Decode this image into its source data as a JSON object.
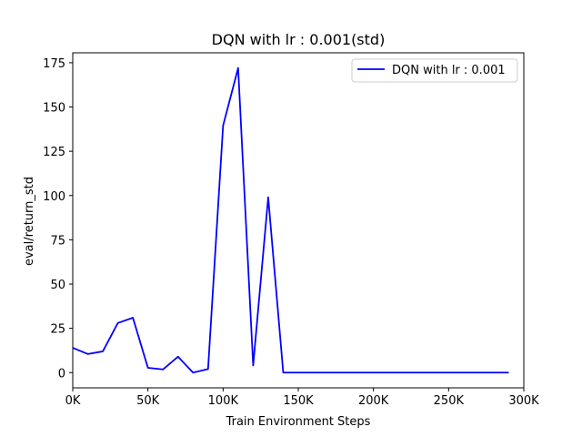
{
  "chart_data": {
    "type": "line",
    "title": "DQN with lr : 0.001(std)",
    "xlabel": "Train Environment Steps",
    "ylabel": "eval/return_std",
    "xlim": [
      0,
      300000
    ],
    "ylim": [
      -8.6,
      180.6
    ],
    "x_ticks": [
      0,
      50000,
      100000,
      150000,
      200000,
      250000,
      300000
    ],
    "x_tick_labels": [
      "0K",
      "50K",
      "100K",
      "150K",
      "200K",
      "250K",
      "300K"
    ],
    "y_ticks": [
      0,
      25,
      50,
      75,
      100,
      125,
      150,
      175
    ],
    "y_tick_labels": [
      "0",
      "25",
      "50",
      "75",
      "100",
      "125",
      "150",
      "175"
    ],
    "grid": false,
    "legend": {
      "placement": "top-right"
    },
    "series": [
      {
        "name": "DQN with lr : 0.001",
        "color": "#0000ff",
        "x": [
          0,
          10000,
          20000,
          30000,
          40000,
          50000,
          60000,
          70000,
          80000,
          90000,
          100000,
          110000,
          120000,
          130000,
          140000,
          150000,
          160000,
          170000,
          180000,
          190000,
          200000,
          210000,
          220000,
          230000,
          240000,
          250000,
          260000,
          270000,
          280000,
          290000
        ],
        "y": [
          14.0,
          10.5,
          12.0,
          28.0,
          31.0,
          2.7,
          1.8,
          9.0,
          0.0,
          2.0,
          139.5,
          172.0,
          4.0,
          99.0,
          0.0,
          0.0,
          0.0,
          0.0,
          0.0,
          0.0,
          0.0,
          0.0,
          0.0,
          0.0,
          0.0,
          0.0,
          0.0,
          0.0,
          0.0,
          0.0
        ]
      }
    ]
  }
}
